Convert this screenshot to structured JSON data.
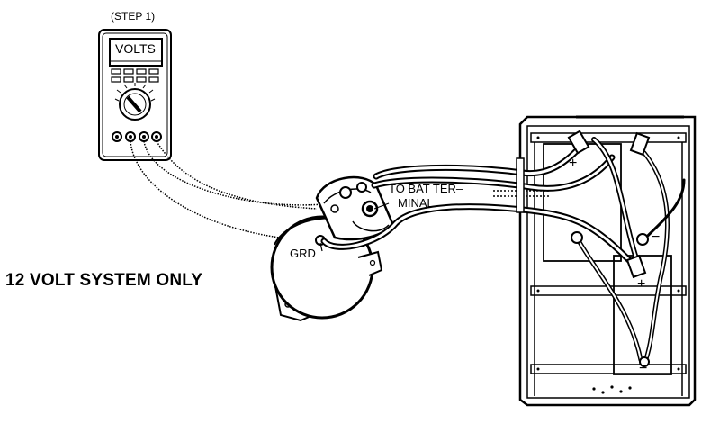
{
  "labels": {
    "step": "(STEP 1)",
    "meter_display": "VOLTS",
    "battery_label_line1": "TO BAT TER–",
    "battery_label_line2": "MINAL",
    "ground": "GRD",
    "system_note": "12 VOLT SYSTEM ONLY",
    "battery_symbols": {
      "plus_top": "+",
      "minus_top": "−",
      "plus_bottom": "+",
      "minus_bottom": "−"
    }
  }
}
